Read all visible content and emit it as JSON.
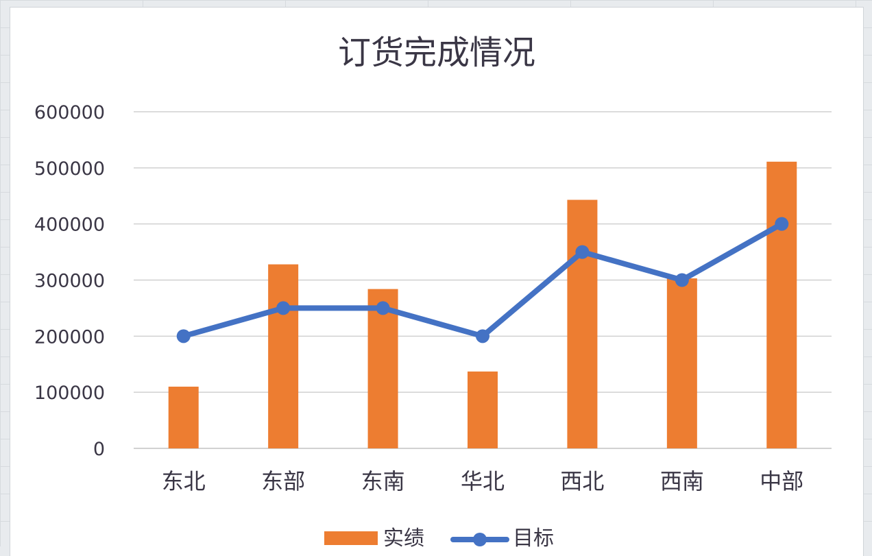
{
  "chart_data": {
    "type": "bar",
    "title": "订货完成情况",
    "categories": [
      "东北",
      "东部",
      "东南",
      "华北",
      "西北",
      "西南",
      "中部"
    ],
    "series": [
      {
        "name": "实绩",
        "kind": "bar",
        "color": "#ed7d31",
        "values": [
          110000,
          328000,
          284000,
          137000,
          443000,
          303000,
          511000
        ]
      },
      {
        "name": "目标",
        "kind": "line",
        "color": "#4472c4",
        "values": [
          200000,
          250000,
          250000,
          200000,
          350000,
          300000,
          400000
        ]
      }
    ],
    "ylim": [
      0,
      600000
    ],
    "yticks": [
      "0",
      "100000",
      "200000",
      "300000",
      "400000",
      "500000",
      "600000"
    ],
    "grid": true,
    "legend_position": "bottom"
  }
}
